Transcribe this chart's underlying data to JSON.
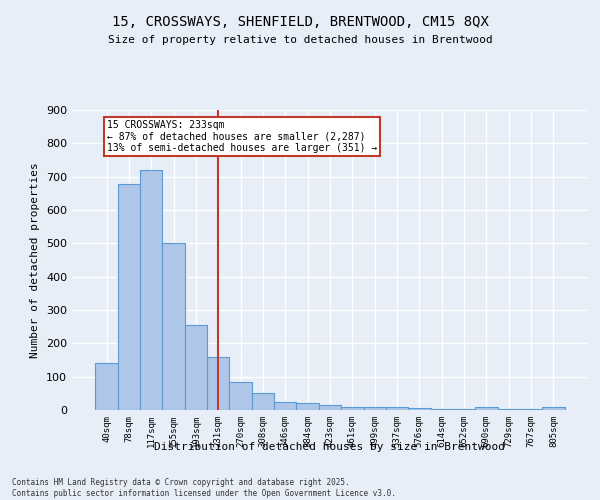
{
  "title_line1": "15, CROSSWAYS, SHENFIELD, BRENTWOOD, CM15 8QX",
  "title_line2": "Size of property relative to detached houses in Brentwood",
  "xlabel": "Distribution of detached houses by size in Brentwood",
  "ylabel": "Number of detached properties",
  "categories": [
    "40sqm",
    "78sqm",
    "117sqm",
    "155sqm",
    "193sqm",
    "231sqm",
    "270sqm",
    "308sqm",
    "346sqm",
    "384sqm",
    "423sqm",
    "461sqm",
    "499sqm",
    "537sqm",
    "576sqm",
    "614sqm",
    "652sqm",
    "690sqm",
    "729sqm",
    "767sqm",
    "805sqm"
  ],
  "values": [
    140,
    678,
    720,
    500,
    255,
    158,
    85,
    50,
    25,
    20,
    15,
    10,
    10,
    8,
    5,
    3,
    2,
    8,
    2,
    2,
    8
  ],
  "bar_color": "#aec6e8",
  "bar_edge_color": "#5b9bd5",
  "bar_linewidth": 0.8,
  "vline_x_index": 5,
  "vline_color": "#c0392b",
  "annotation_title": "15 CROSSWAYS: 233sqm",
  "annotation_line1": "← 87% of detached houses are smaller (2,287)",
  "annotation_line2": "13% of semi-detached houses are larger (351) →",
  "annotation_box_color": "#c0392b",
  "ylim": [
    0,
    900
  ],
  "yticks": [
    0,
    100,
    200,
    300,
    400,
    500,
    600,
    700,
    800,
    900
  ],
  "background_color": "#e8eef8",
  "grid_color": "#ffffff",
  "footer_line1": "Contains HM Land Registry data © Crown copyright and database right 2025.",
  "footer_line2": "Contains public sector information licensed under the Open Government Licence v3.0."
}
